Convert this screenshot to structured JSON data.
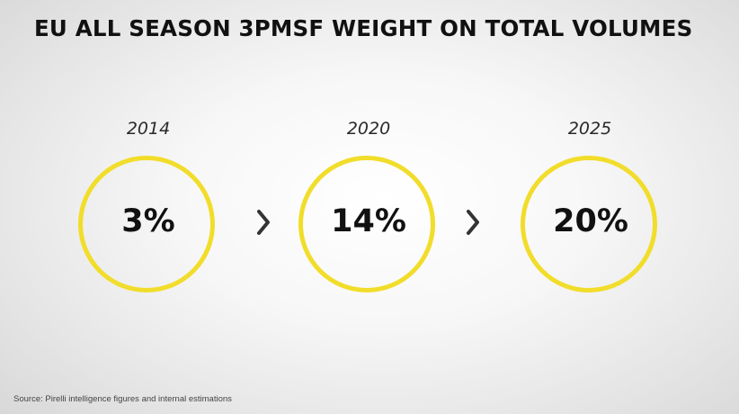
{
  "slide": {
    "title": "EU ALL SEASON 3PMSF WEIGHT ON TOTAL VOLUMES",
    "source": "Source: Pirelli intelligence figures and internal estimations"
  },
  "chart_data": {
    "type": "table",
    "title": "EU ALL SEASON 3PMSF WEIGHT ON TOTAL VOLUMES",
    "categories": [
      "2014",
      "2020",
      "2025"
    ],
    "values": [
      3,
      14,
      20
    ],
    "value_labels": [
      "3%",
      "14%",
      "20%"
    ],
    "unit": "%"
  },
  "colors": {
    "accent": "#f1dd2a",
    "text": "#111111",
    "arrow": "#333333"
  },
  "icons": {
    "arrow_1": "chevron-right-icon",
    "arrow_2": "chevron-right-icon"
  }
}
